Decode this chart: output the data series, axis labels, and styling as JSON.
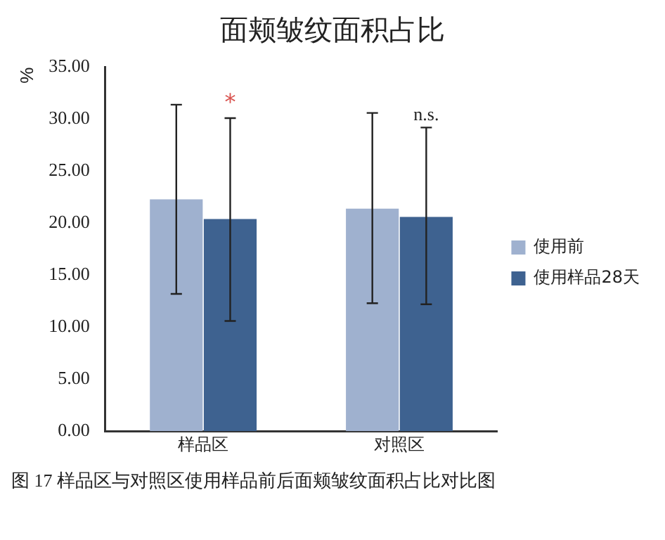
{
  "chart_data": {
    "type": "bar",
    "title": "面颊皱纹面积占比",
    "ylabel": "%",
    "categories": [
      "样品区",
      "对照区"
    ],
    "series": [
      {
        "name": "使用前",
        "color": "#9fb1cf",
        "values": [
          22.3,
          21.4
        ],
        "errors": [
          [
            13.2,
            31.4
          ],
          [
            12.3,
            30.6
          ]
        ]
      },
      {
        "name": "使用样品28天",
        "color": "#3e6290",
        "values": [
          20.4,
          20.6
        ],
        "errors": [
          [
            10.6,
            30.1
          ],
          [
            12.2,
            29.2
          ]
        ]
      }
    ],
    "ylim": [
      0,
      35
    ],
    "yticks": [
      {
        "value": 0,
        "label": "0.00"
      },
      {
        "value": 5,
        "label": "5.00"
      },
      {
        "value": 10,
        "label": "10.00"
      },
      {
        "value": 15,
        "label": "15.00"
      },
      {
        "value": 20,
        "label": "20.00"
      },
      {
        "value": 25,
        "label": "25.00"
      },
      {
        "value": 30,
        "label": "30.00"
      },
      {
        "value": 35,
        "label": "35.00"
      }
    ],
    "grid": false,
    "legend": "right",
    "annotations": [
      "*",
      "n.s.",
      "图 17 样品区与对照区使用样品前后面颊皱纹面积占比对比图"
    ]
  }
}
